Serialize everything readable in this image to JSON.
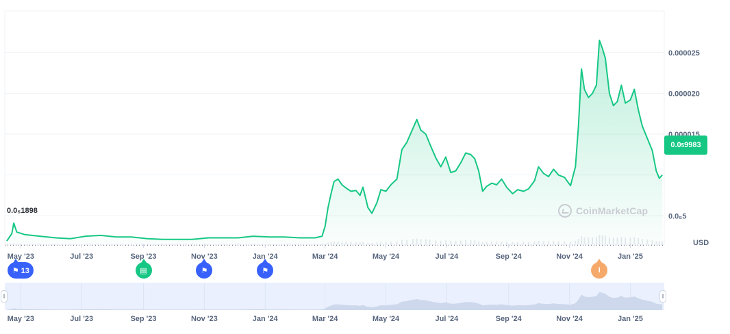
{
  "chart_data": {
    "type": "area",
    "title": "",
    "xlabel": "",
    "ylabel": "",
    "unit": "USD",
    "base_price_label": "0.0₅1898",
    "current_price": {
      "prefix": "0.0",
      "sub": "5",
      "digits": "9983"
    },
    "ylim": [
      1.5e-06,
      3.01e-05
    ],
    "y_ticks": [
      {
        "value": 2.5e-05,
        "label": "0.000025"
      },
      {
        "value": 2e-05,
        "label": "0.000020"
      },
      {
        "value": 1.5e-05,
        "label": "0.000015"
      },
      {
        "value": 5e-06,
        "label": "0.0₅5"
      }
    ],
    "x_ticks": [
      "May '23",
      "Jul '23",
      "Sep '23",
      "Nov '23",
      "Jan '24",
      "Mar '24",
      "May '24",
      "Jul '24",
      "Sep '24",
      "Nov '24",
      "Jan '25"
    ],
    "x_tick_dates": [
      "2023-05-01",
      "2023-07-01",
      "2023-09-01",
      "2023-11-01",
      "2024-01-01",
      "2024-03-01",
      "2024-05-01",
      "2024-07-01",
      "2024-09-01",
      "2024-11-01",
      "2025-01-01"
    ],
    "series": [
      {
        "color": "#16c784",
        "points": [
          [
            "2023-04-17",
            1.9e-06
          ],
          [
            "2023-04-22",
            2.8e-06
          ],
          [
            "2023-04-24",
            4.1e-06
          ],
          [
            "2023-04-27",
            3e-06
          ],
          [
            "2023-05-05",
            2.7e-06
          ],
          [
            "2023-05-20",
            2.5e-06
          ],
          [
            "2023-06-05",
            2.3e-06
          ],
          [
            "2023-06-20",
            2.2e-06
          ],
          [
            "2023-07-05",
            2.5e-06
          ],
          [
            "2023-07-20",
            2.6e-06
          ],
          [
            "2023-08-05",
            2.4e-06
          ],
          [
            "2023-08-20",
            2.4e-06
          ],
          [
            "2023-09-05",
            2.2e-06
          ],
          [
            "2023-09-20",
            2.1e-06
          ],
          [
            "2023-10-05",
            2.1e-06
          ],
          [
            "2023-10-20",
            2.1e-06
          ],
          [
            "2023-11-05",
            2.3e-06
          ],
          [
            "2023-11-20",
            2.3e-06
          ],
          [
            "2023-12-05",
            2.3e-06
          ],
          [
            "2023-12-20",
            2.5e-06
          ],
          [
            "2024-01-05",
            2.4e-06
          ],
          [
            "2024-01-20",
            2.4e-06
          ],
          [
            "2024-02-05",
            2.3e-06
          ],
          [
            "2024-02-20",
            2.3e-06
          ],
          [
            "2024-02-27",
            2.5e-06
          ],
          [
            "2024-03-01",
            3.7e-06
          ],
          [
            "2024-03-04",
            6e-06
          ],
          [
            "2024-03-07",
            7.7e-06
          ],
          [
            "2024-03-10",
            9.2e-06
          ],
          [
            "2024-03-14",
            9.5e-06
          ],
          [
            "2024-03-18",
            8.8e-06
          ],
          [
            "2024-03-22",
            8.4e-06
          ],
          [
            "2024-03-27",
            8e-06
          ],
          [
            "2024-04-01",
            8.1e-06
          ],
          [
            "2024-04-05",
            7.5e-06
          ],
          [
            "2024-04-08",
            8.5e-06
          ],
          [
            "2024-04-13",
            6e-06
          ],
          [
            "2024-04-17",
            5.3e-06
          ],
          [
            "2024-04-22",
            6.6e-06
          ],
          [
            "2024-04-26",
            8.2e-06
          ],
          [
            "2024-05-01",
            8e-06
          ],
          [
            "2024-05-06",
            8.8e-06
          ],
          [
            "2024-05-12",
            9.5e-06
          ],
          [
            "2024-05-17",
            1.31e-05
          ],
          [
            "2024-05-22",
            1.4e-05
          ],
          [
            "2024-05-28",
            1.57e-05
          ],
          [
            "2024-06-01",
            1.68e-05
          ],
          [
            "2024-06-05",
            1.55e-05
          ],
          [
            "2024-06-10",
            1.5e-05
          ],
          [
            "2024-06-14",
            1.38e-05
          ],
          [
            "2024-06-20",
            1.21e-05
          ],
          [
            "2024-06-25",
            1.1e-05
          ],
          [
            "2024-06-30",
            1.22e-05
          ],
          [
            "2024-07-05",
            1.03e-05
          ],
          [
            "2024-07-10",
            1.05e-05
          ],
          [
            "2024-07-15",
            1.15e-05
          ],
          [
            "2024-07-20",
            1.27e-05
          ],
          [
            "2024-07-25",
            1.25e-05
          ],
          [
            "2024-07-29",
            1.2e-05
          ],
          [
            "2024-08-02",
            1.05e-05
          ],
          [
            "2024-08-06",
            8e-06
          ],
          [
            "2024-08-10",
            8.6e-06
          ],
          [
            "2024-08-15",
            9e-06
          ],
          [
            "2024-08-20",
            8.8e-06
          ],
          [
            "2024-08-25",
            9.5e-06
          ],
          [
            "2024-08-30",
            8.5e-06
          ],
          [
            "2024-09-05",
            7.7e-06
          ],
          [
            "2024-09-10",
            8.2e-06
          ],
          [
            "2024-09-16",
            8e-06
          ],
          [
            "2024-09-21",
            8.3e-06
          ],
          [
            "2024-09-27",
            9.3e-06
          ],
          [
            "2024-10-01",
            1.1e-05
          ],
          [
            "2024-10-06",
            1.02e-05
          ],
          [
            "2024-10-11",
            9.8e-06
          ],
          [
            "2024-10-16",
            1.07e-05
          ],
          [
            "2024-10-21",
            1e-05
          ],
          [
            "2024-10-27",
            9.7e-06
          ],
          [
            "2024-11-02",
            8.7e-06
          ],
          [
            "2024-11-07",
            1.1e-05
          ],
          [
            "2024-11-10",
            1.6e-05
          ],
          [
            "2024-11-13",
            2.3e-05
          ],
          [
            "2024-11-16",
            2.05e-05
          ],
          [
            "2024-11-20",
            1.95e-05
          ],
          [
            "2024-11-24",
            2e-05
          ],
          [
            "2024-11-28",
            2.1e-05
          ],
          [
            "2024-12-01",
            2.65e-05
          ],
          [
            "2024-12-04",
            2.55e-05
          ],
          [
            "2024-12-07",
            2.43e-05
          ],
          [
            "2024-12-11",
            2e-05
          ],
          [
            "2024-12-15",
            1.85e-05
          ],
          [
            "2024-12-19",
            1.9e-05
          ],
          [
            "2024-12-23",
            2.1e-05
          ],
          [
            "2024-12-27",
            1.88e-05
          ],
          [
            "2025-01-01",
            1.92e-05
          ],
          [
            "2025-01-05",
            2.05e-05
          ],
          [
            "2025-01-09",
            1.8e-05
          ],
          [
            "2025-01-13",
            1.6e-05
          ],
          [
            "2025-01-18",
            1.45e-05
          ],
          [
            "2025-01-23",
            1.3e-05
          ],
          [
            "2025-01-27",
            1.05e-05
          ],
          [
            "2025-01-30",
            9.6e-06
          ],
          [
            "2025-02-02",
            1e-05
          ]
        ]
      }
    ],
    "grid": true,
    "legend": "none",
    "watermark": "CoinMarketCap",
    "events": [
      {
        "label": "13",
        "icon": "flag-icon",
        "color": "#3861fb",
        "date": "2023-05-01"
      },
      {
        "label": "",
        "icon": "document-icon",
        "color": "#16c784",
        "date": "2023-09-01"
      },
      {
        "label": "",
        "icon": "flag-icon",
        "color": "#3861fb",
        "date": "2023-11-01"
      },
      {
        "label": "",
        "icon": "flag-icon",
        "color": "#3861fb",
        "date": "2024-01-01"
      },
      {
        "label": "i",
        "icon": "info-icon",
        "color": "#f5a96b",
        "date": "2024-12-01"
      }
    ]
  }
}
